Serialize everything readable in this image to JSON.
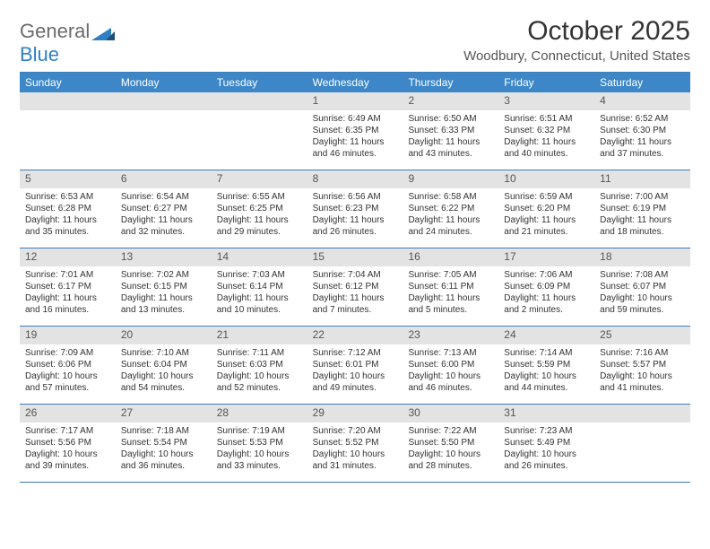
{
  "logo": {
    "text_gray": "General",
    "text_blue": "Blue"
  },
  "title": "October 2025",
  "location": "Woodbury, Connecticut, United States",
  "colors": {
    "header_bar": "#3d87c8",
    "rule": "#3d7cb5",
    "daynum_bg": "#e3e3e3",
    "logo_gray": "#6b6b6b",
    "logo_blue": "#2f7fc4"
  },
  "days_of_week": [
    "Sunday",
    "Monday",
    "Tuesday",
    "Wednesday",
    "Thursday",
    "Friday",
    "Saturday"
  ],
  "weeks": [
    [
      {
        "n": "",
        "sr": "",
        "ss": "",
        "dl": ""
      },
      {
        "n": "",
        "sr": "",
        "ss": "",
        "dl": ""
      },
      {
        "n": "",
        "sr": "",
        "ss": "",
        "dl": ""
      },
      {
        "n": "1",
        "sr": "Sunrise: 6:49 AM",
        "ss": "Sunset: 6:35 PM",
        "dl": "Daylight: 11 hours and 46 minutes."
      },
      {
        "n": "2",
        "sr": "Sunrise: 6:50 AM",
        "ss": "Sunset: 6:33 PM",
        "dl": "Daylight: 11 hours and 43 minutes."
      },
      {
        "n": "3",
        "sr": "Sunrise: 6:51 AM",
        "ss": "Sunset: 6:32 PM",
        "dl": "Daylight: 11 hours and 40 minutes."
      },
      {
        "n": "4",
        "sr": "Sunrise: 6:52 AM",
        "ss": "Sunset: 6:30 PM",
        "dl": "Daylight: 11 hours and 37 minutes."
      }
    ],
    [
      {
        "n": "5",
        "sr": "Sunrise: 6:53 AM",
        "ss": "Sunset: 6:28 PM",
        "dl": "Daylight: 11 hours and 35 minutes."
      },
      {
        "n": "6",
        "sr": "Sunrise: 6:54 AM",
        "ss": "Sunset: 6:27 PM",
        "dl": "Daylight: 11 hours and 32 minutes."
      },
      {
        "n": "7",
        "sr": "Sunrise: 6:55 AM",
        "ss": "Sunset: 6:25 PM",
        "dl": "Daylight: 11 hours and 29 minutes."
      },
      {
        "n": "8",
        "sr": "Sunrise: 6:56 AM",
        "ss": "Sunset: 6:23 PM",
        "dl": "Daylight: 11 hours and 26 minutes."
      },
      {
        "n": "9",
        "sr": "Sunrise: 6:58 AM",
        "ss": "Sunset: 6:22 PM",
        "dl": "Daylight: 11 hours and 24 minutes."
      },
      {
        "n": "10",
        "sr": "Sunrise: 6:59 AM",
        "ss": "Sunset: 6:20 PM",
        "dl": "Daylight: 11 hours and 21 minutes."
      },
      {
        "n": "11",
        "sr": "Sunrise: 7:00 AM",
        "ss": "Sunset: 6:19 PM",
        "dl": "Daylight: 11 hours and 18 minutes."
      }
    ],
    [
      {
        "n": "12",
        "sr": "Sunrise: 7:01 AM",
        "ss": "Sunset: 6:17 PM",
        "dl": "Daylight: 11 hours and 16 minutes."
      },
      {
        "n": "13",
        "sr": "Sunrise: 7:02 AM",
        "ss": "Sunset: 6:15 PM",
        "dl": "Daylight: 11 hours and 13 minutes."
      },
      {
        "n": "14",
        "sr": "Sunrise: 7:03 AM",
        "ss": "Sunset: 6:14 PM",
        "dl": "Daylight: 11 hours and 10 minutes."
      },
      {
        "n": "15",
        "sr": "Sunrise: 7:04 AM",
        "ss": "Sunset: 6:12 PM",
        "dl": "Daylight: 11 hours and 7 minutes."
      },
      {
        "n": "16",
        "sr": "Sunrise: 7:05 AM",
        "ss": "Sunset: 6:11 PM",
        "dl": "Daylight: 11 hours and 5 minutes."
      },
      {
        "n": "17",
        "sr": "Sunrise: 7:06 AM",
        "ss": "Sunset: 6:09 PM",
        "dl": "Daylight: 11 hours and 2 minutes."
      },
      {
        "n": "18",
        "sr": "Sunrise: 7:08 AM",
        "ss": "Sunset: 6:07 PM",
        "dl": "Daylight: 10 hours and 59 minutes."
      }
    ],
    [
      {
        "n": "19",
        "sr": "Sunrise: 7:09 AM",
        "ss": "Sunset: 6:06 PM",
        "dl": "Daylight: 10 hours and 57 minutes."
      },
      {
        "n": "20",
        "sr": "Sunrise: 7:10 AM",
        "ss": "Sunset: 6:04 PM",
        "dl": "Daylight: 10 hours and 54 minutes."
      },
      {
        "n": "21",
        "sr": "Sunrise: 7:11 AM",
        "ss": "Sunset: 6:03 PM",
        "dl": "Daylight: 10 hours and 52 minutes."
      },
      {
        "n": "22",
        "sr": "Sunrise: 7:12 AM",
        "ss": "Sunset: 6:01 PM",
        "dl": "Daylight: 10 hours and 49 minutes."
      },
      {
        "n": "23",
        "sr": "Sunrise: 7:13 AM",
        "ss": "Sunset: 6:00 PM",
        "dl": "Daylight: 10 hours and 46 minutes."
      },
      {
        "n": "24",
        "sr": "Sunrise: 7:14 AM",
        "ss": "Sunset: 5:59 PM",
        "dl": "Daylight: 10 hours and 44 minutes."
      },
      {
        "n": "25",
        "sr": "Sunrise: 7:16 AM",
        "ss": "Sunset: 5:57 PM",
        "dl": "Daylight: 10 hours and 41 minutes."
      }
    ],
    [
      {
        "n": "26",
        "sr": "Sunrise: 7:17 AM",
        "ss": "Sunset: 5:56 PM",
        "dl": "Daylight: 10 hours and 39 minutes."
      },
      {
        "n": "27",
        "sr": "Sunrise: 7:18 AM",
        "ss": "Sunset: 5:54 PM",
        "dl": "Daylight: 10 hours and 36 minutes."
      },
      {
        "n": "28",
        "sr": "Sunrise: 7:19 AM",
        "ss": "Sunset: 5:53 PM",
        "dl": "Daylight: 10 hours and 33 minutes."
      },
      {
        "n": "29",
        "sr": "Sunrise: 7:20 AM",
        "ss": "Sunset: 5:52 PM",
        "dl": "Daylight: 10 hours and 31 minutes."
      },
      {
        "n": "30",
        "sr": "Sunrise: 7:22 AM",
        "ss": "Sunset: 5:50 PM",
        "dl": "Daylight: 10 hours and 28 minutes."
      },
      {
        "n": "31",
        "sr": "Sunrise: 7:23 AM",
        "ss": "Sunset: 5:49 PM",
        "dl": "Daylight: 10 hours and 26 minutes."
      },
      {
        "n": "",
        "sr": "",
        "ss": "",
        "dl": ""
      }
    ]
  ]
}
